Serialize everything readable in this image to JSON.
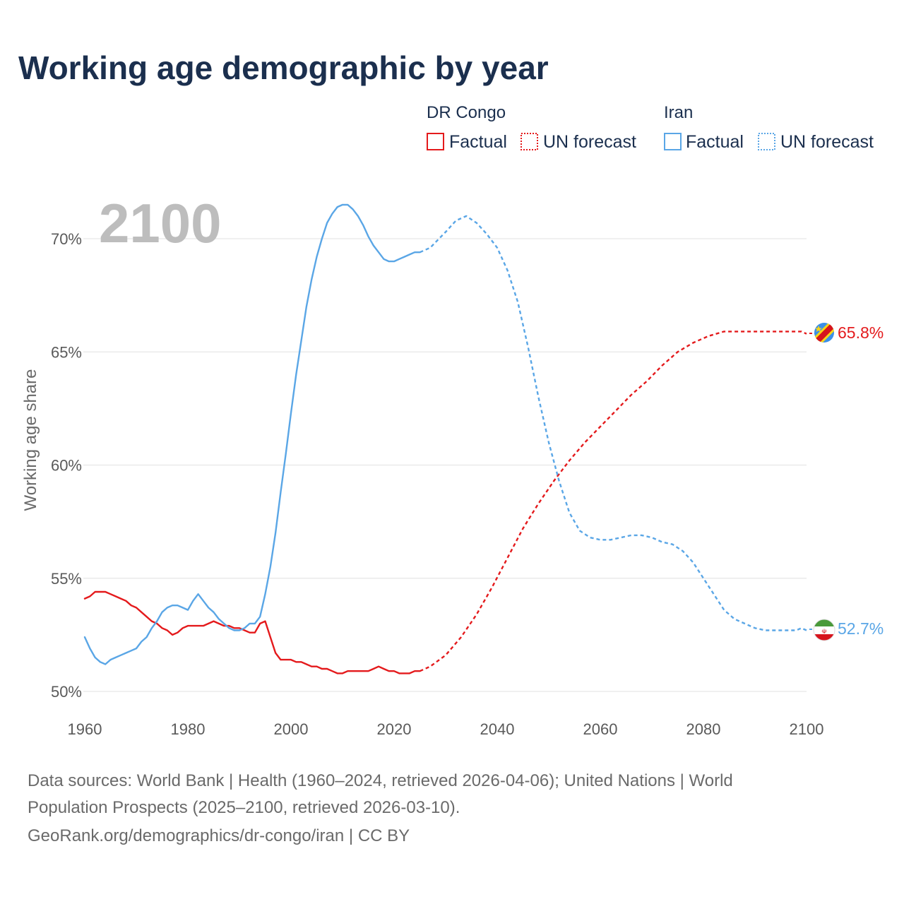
{
  "title": "Working age demographic by year",
  "year_label": "2100",
  "legend": {
    "groups": [
      {
        "name": "DR Congo",
        "factual": "Factual",
        "forecast": "UN forecast",
        "color": "#e41a1c"
      },
      {
        "name": "Iran",
        "factual": "Factual",
        "forecast": "UN forecast",
        "color": "#5aa6e6"
      }
    ]
  },
  "end_labels": {
    "drc": {
      "text": "65.8%",
      "flag_icon": "dr-congo-flag-icon"
    },
    "iran": {
      "text": "52.7%",
      "flag_icon": "iran-flag-icon"
    }
  },
  "source": {
    "line1": "Data sources: World Bank | Health (1960–2024, retrieved 2026-04-06); United Nations | World",
    "line2": "Population Prospects (2025–2100, retrieved 2026-03-10).",
    "line3": "GeoRank.org/demographics/dr-congo/iran | CC BY"
  },
  "chart_data": {
    "type": "line",
    "title": "Working age demographic by year",
    "xlabel": "",
    "ylabel": "Working age share",
    "xlim": [
      1960,
      2100
    ],
    "ylim": [
      50,
      72
    ],
    "xticks": [
      1960,
      1980,
      2000,
      2020,
      2040,
      2060,
      2080,
      2100
    ],
    "xtick_labels": [
      "1960",
      "1980",
      "2000",
      "2020",
      "2040",
      "2060",
      "2080",
      "2100"
    ],
    "yticks": [
      50,
      55,
      60,
      65,
      70
    ],
    "ytick_labels": [
      "50%",
      "55%",
      "60%",
      "65%",
      "70%"
    ],
    "series": [
      {
        "name": "DR Congo",
        "segment": "Factual",
        "style": "solid",
        "color": "#e41a1c",
        "x": [
          1960,
          1961,
          1962,
          1963,
          1964,
          1965,
          1966,
          1967,
          1968,
          1969,
          1970,
          1971,
          1972,
          1973,
          1974,
          1975,
          1976,
          1977,
          1978,
          1979,
          1980,
          1981,
          1982,
          1983,
          1984,
          1985,
          1986,
          1987,
          1988,
          1989,
          1990,
          1991,
          1992,
          1993,
          1994,
          1995,
          1996,
          1997,
          1998,
          1999,
          2000,
          2001,
          2002,
          2003,
          2004,
          2005,
          2006,
          2007,
          2008,
          2009,
          2010,
          2011,
          2012,
          2013,
          2014,
          2015,
          2016,
          2017,
          2018,
          2019,
          2020,
          2021,
          2022,
          2023,
          2024,
          2025
        ],
        "y": [
          54.1,
          54.2,
          54.4,
          54.4,
          54.4,
          54.3,
          54.2,
          54.1,
          54.0,
          53.8,
          53.7,
          53.5,
          53.3,
          53.1,
          53.0,
          52.8,
          52.7,
          52.5,
          52.6,
          52.8,
          52.9,
          52.9,
          52.9,
          52.9,
          53.0,
          53.1,
          53.0,
          52.9,
          52.9,
          52.8,
          52.8,
          52.7,
          52.6,
          52.6,
          53.0,
          53.1,
          52.4,
          51.7,
          51.4,
          51.4,
          51.4,
          51.3,
          51.3,
          51.2,
          51.1,
          51.1,
          51.0,
          51.0,
          50.9,
          50.8,
          50.8,
          50.9,
          50.9,
          50.9,
          50.9,
          50.9,
          51.0,
          51.1,
          51.0,
          50.9,
          50.9,
          50.8,
          50.8,
          50.8,
          50.9,
          50.9
        ]
      },
      {
        "name": "DR Congo",
        "segment": "UN forecast",
        "style": "dashed",
        "color": "#e41a1c",
        "x": [
          2025,
          2027,
          2030,
          2033,
          2036,
          2039,
          2042,
          2045,
          2048,
          2051,
          2054,
          2057,
          2060,
          2063,
          2066,
          2069,
          2072,
          2075,
          2078,
          2081,
          2084,
          2087,
          2090,
          2093,
          2096,
          2099,
          2100
        ],
        "y": [
          50.9,
          51.1,
          51.6,
          52.4,
          53.4,
          54.6,
          55.9,
          57.2,
          58.3,
          59.3,
          60.2,
          61.0,
          61.7,
          62.4,
          63.1,
          63.7,
          64.4,
          65.0,
          65.4,
          65.7,
          65.9,
          65.9,
          65.9,
          65.9,
          65.9,
          65.9,
          65.8
        ]
      },
      {
        "name": "Iran",
        "segment": "Factual",
        "style": "solid",
        "color": "#5aa6e6",
        "x": [
          1960,
          1961,
          1962,
          1963,
          1964,
          1965,
          1966,
          1967,
          1968,
          1969,
          1970,
          1971,
          1972,
          1973,
          1974,
          1975,
          1976,
          1977,
          1978,
          1979,
          1980,
          1981,
          1982,
          1983,
          1984,
          1985,
          1986,
          1987,
          1988,
          1989,
          1990,
          1991,
          1992,
          1993,
          1994,
          1995,
          1996,
          1997,
          1998,
          1999,
          2000,
          2001,
          2002,
          2003,
          2004,
          2005,
          2006,
          2007,
          2008,
          2009,
          2010,
          2011,
          2012,
          2013,
          2014,
          2015,
          2016,
          2017,
          2018,
          2019,
          2020,
          2021,
          2022,
          2023,
          2024,
          2025
        ],
        "y": [
          52.4,
          51.9,
          51.5,
          51.3,
          51.2,
          51.4,
          51.5,
          51.6,
          51.7,
          51.8,
          51.9,
          52.2,
          52.4,
          52.8,
          53.1,
          53.5,
          53.7,
          53.8,
          53.8,
          53.7,
          53.6,
          54.0,
          54.3,
          54.0,
          53.7,
          53.5,
          53.2,
          53.0,
          52.8,
          52.7,
          52.7,
          52.8,
          53.0,
          53.0,
          53.3,
          54.3,
          55.5,
          57.0,
          58.8,
          60.5,
          62.3,
          64.0,
          65.5,
          67.0,
          68.2,
          69.2,
          70.0,
          70.7,
          71.1,
          71.4,
          71.5,
          71.5,
          71.3,
          71.0,
          70.6,
          70.1,
          69.7,
          69.4,
          69.1,
          69.0,
          69.0,
          69.1,
          69.2,
          69.3,
          69.4,
          69.4
        ]
      },
      {
        "name": "Iran",
        "segment": "UN forecast",
        "style": "dashed",
        "color": "#5aa6e6",
        "x": [
          2025,
          2027,
          2030,
          2032,
          2034,
          2036,
          2038,
          2040,
          2042,
          2044,
          2046,
          2048,
          2050,
          2052,
          2054,
          2056,
          2058,
          2060,
          2062,
          2064,
          2066,
          2068,
          2070,
          2072,
          2074,
          2076,
          2078,
          2080,
          2082,
          2084,
          2086,
          2088,
          2090,
          2092,
          2094,
          2096,
          2098,
          2099,
          2100
        ],
        "y": [
          69.4,
          69.6,
          70.3,
          70.8,
          71.0,
          70.7,
          70.2,
          69.6,
          68.6,
          67.2,
          65.2,
          63.0,
          61.0,
          59.3,
          57.9,
          57.1,
          56.8,
          56.7,
          56.7,
          56.8,
          56.9,
          56.9,
          56.8,
          56.6,
          56.5,
          56.2,
          55.7,
          55.0,
          54.3,
          53.6,
          53.2,
          53.0,
          52.8,
          52.7,
          52.7,
          52.7,
          52.7,
          52.8,
          52.7
        ]
      }
    ]
  }
}
